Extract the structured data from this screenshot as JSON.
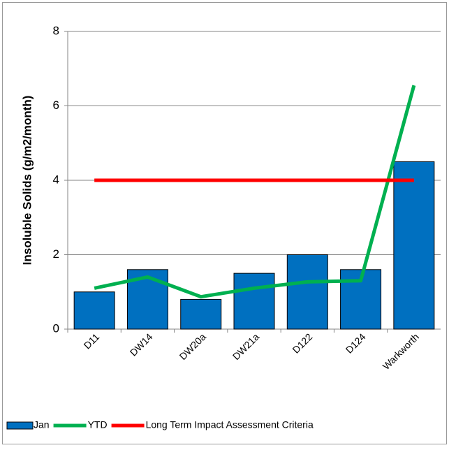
{
  "chart_data": {
    "type": "bar",
    "y_label": "Insoluble Solids (g/m2/month)",
    "categories": [
      "D11",
      "DW14",
      "DW20a",
      "DW21a",
      "D122",
      "D124",
      "Warkworth"
    ],
    "series": [
      {
        "name": "Jan",
        "type": "bar",
        "color": "#0070c0",
        "values": [
          1,
          1.6,
          0.8,
          1.5,
          2,
          1.6,
          4.5
        ]
      },
      {
        "name": "YTD",
        "type": "line",
        "color": "#00b050",
        "values": [
          1.1,
          1.4,
          0.87,
          1.1,
          1.27,
          1.3,
          6.55
        ]
      },
      {
        "name": "Long Term Impact Assessment Criteria",
        "type": "line",
        "color": "#ff0000",
        "values": [
          4,
          4,
          4,
          4,
          4,
          4,
          4
        ]
      }
    ],
    "ylim": [
      0,
      8
    ],
    "yticks": [
      0,
      2,
      4,
      6,
      8
    ],
    "grid": true,
    "legend": "bottom"
  }
}
